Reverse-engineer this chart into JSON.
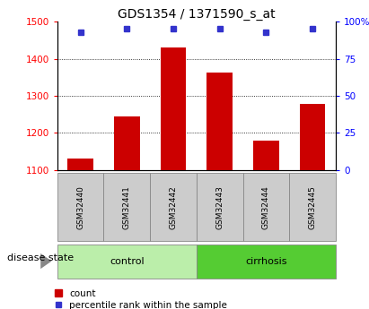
{
  "title": "GDS1354 / 1371590_s_at",
  "samples": [
    "GSM32440",
    "GSM32441",
    "GSM32442",
    "GSM32443",
    "GSM32444",
    "GSM32445"
  ],
  "counts": [
    1132,
    1245,
    1430,
    1362,
    1180,
    1278
  ],
  "percentiles": [
    93,
    95,
    95,
    95,
    93,
    95
  ],
  "ylim_left": [
    1100,
    1500
  ],
  "ylim_right": [
    0,
    100
  ],
  "yticks_left": [
    1100,
    1200,
    1300,
    1400,
    1500
  ],
  "yticks_right": [
    0,
    25,
    50,
    75,
    100
  ],
  "bar_color": "#cc0000",
  "dot_color": "#3333cc",
  "group_info": [
    {
      "label": "control",
      "start": 0,
      "end": 2,
      "color": "#bbeeaa"
    },
    {
      "label": "cirrhosis",
      "start": 3,
      "end": 5,
      "color": "#66dd44"
    }
  ],
  "disease_label": "disease state",
  "legend_count_label": "count",
  "legend_pct_label": "percentile rank within the sample",
  "sample_box_color": "#cccccc",
  "title_fontsize": 10,
  "tick_fontsize": 7.5,
  "sample_fontsize": 6.5,
  "group_fontsize": 8,
  "legend_fontsize": 7.5,
  "ds_fontsize": 8
}
